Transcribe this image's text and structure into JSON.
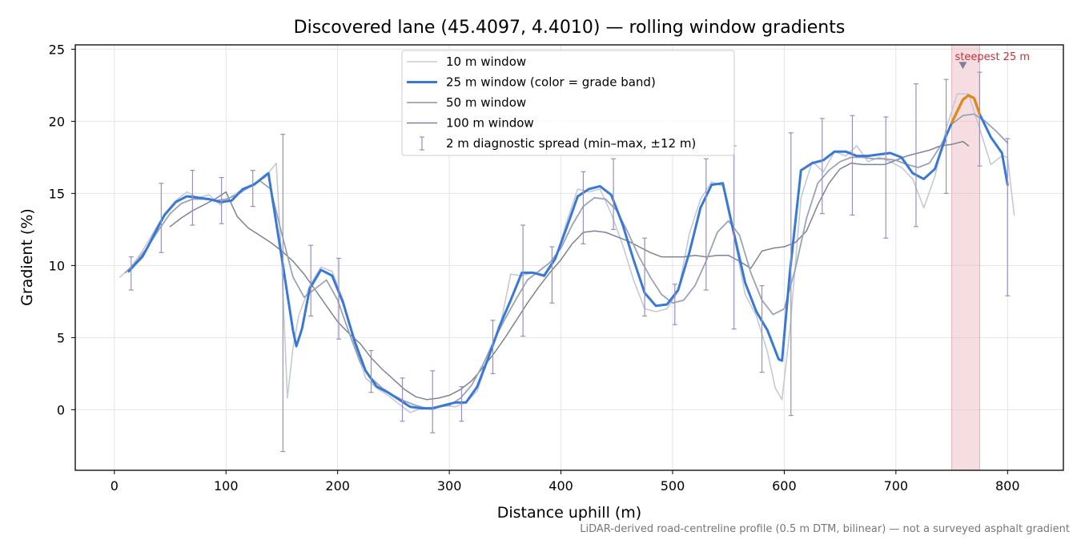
{
  "chart_data": {
    "type": "line",
    "title": "Discovered lane (45.4097, 4.4010) — rolling window gradients",
    "xlabel": "Distance uphill (m)",
    "ylabel": "Gradient (%)",
    "footnote": "LiDAR-derived road-centreline profile (0.5 m DTM, bilinear) — not a surveyed asphalt gradient",
    "xlim": [
      -35,
      850
    ],
    "ylim": [
      -4.2,
      25.3
    ],
    "x_ticks": [
      0,
      100,
      200,
      300,
      400,
      500,
      600,
      700,
      800
    ],
    "y_ticks": [
      0,
      5,
      10,
      15,
      20,
      25
    ],
    "grid": true,
    "legend_position": "top-center",
    "colors": {
      "w10": "#c3cad6",
      "w25": "#3a78d6",
      "w25_steep": "#e08a16",
      "w50": "#9aa4b4",
      "w100": "#7c8494",
      "errorbar": "#9a8fc0",
      "highlight_fill": "#eab4be",
      "highlight_label": "#c0303a",
      "grid": "#e4e4e4"
    },
    "annotation": {
      "text": "steepest 25 m",
      "x_range": [
        750,
        775
      ],
      "marker_x": 760,
      "marker_y": 23.9
    },
    "legend": [
      {
        "key": "w10",
        "label": "10 m window",
        "style": "line-thin"
      },
      {
        "key": "w25",
        "label": "25 m window (color = grade band)",
        "style": "line-thick"
      },
      {
        "key": "w50",
        "label": "50 m window",
        "style": "line-medium"
      },
      {
        "key": "w100",
        "label": "100 m window",
        "style": "line-dark"
      },
      {
        "key": "errorbar",
        "label": "2 m diagnostic spread (min–max, ±12 m)",
        "style": "errorbar"
      }
    ],
    "series": [
      {
        "key": "w10",
        "label": "10 m window",
        "x": [
          5,
          15,
          25,
          35,
          45,
          55,
          65,
          75,
          85,
          95,
          105,
          115,
          125,
          135,
          145,
          150,
          155,
          160,
          165,
          175,
          185,
          195,
          205,
          215,
          225,
          235,
          245,
          255,
          265,
          275,
          285,
          295,
          305,
          315,
          325,
          335,
          345,
          355,
          365,
          375,
          385,
          395,
          405,
          415,
          425,
          435,
          445,
          455,
          465,
          475,
          485,
          495,
          505,
          515,
          525,
          535,
          545,
          555,
          565,
          575,
          585,
          592,
          598,
          605,
          615,
          625,
          635,
          645,
          655,
          665,
          675,
          685,
          695,
          705,
          715,
          725,
          735,
          745,
          755,
          765,
          775,
          785,
          795,
          800,
          806
        ],
        "y": [
          9.2,
          9.9,
          11.0,
          12.3,
          13.6,
          14.5,
          15.1,
          14.7,
          14.9,
          14.2,
          14.8,
          15.3,
          15.7,
          16.1,
          17.1,
          10.0,
          0.8,
          4.3,
          6.5,
          8.6,
          9.9,
          9.6,
          7.6,
          4.6,
          2.2,
          1.5,
          1.0,
          0.4,
          -0.2,
          0.1,
          0.0,
          0.3,
          0.2,
          0.5,
          1.3,
          3.6,
          5.6,
          9.4,
          9.3,
          9.5,
          9.2,
          10.4,
          13.0,
          15.3,
          15.1,
          15.3,
          13.6,
          11.5,
          9.0,
          7.0,
          6.8,
          7.0,
          8.2,
          12.2,
          14.6,
          15.8,
          15.5,
          12.0,
          8.0,
          6.5,
          4.0,
          1.5,
          0.7,
          5.5,
          14.7,
          17.2,
          16.5,
          17.9,
          17.6,
          18.3,
          17.2,
          17.5,
          17.2,
          16.8,
          16.0,
          14.0,
          16.2,
          19.5,
          21.9,
          21.9,
          19.5,
          17.0,
          17.6,
          17.5,
          13.5
        ]
      },
      {
        "key": "w50",
        "label": "50 m window",
        "x": [
          10,
          20,
          30,
          40,
          50,
          60,
          70,
          80,
          90,
          100,
          110,
          120,
          130,
          140,
          150,
          160,
          170,
          180,
          190,
          200,
          210,
          220,
          230,
          240,
          250,
          260,
          270,
          280,
          290,
          300,
          310,
          320,
          330,
          340,
          350,
          360,
          370,
          380,
          390,
          400,
          410,
          420,
          430,
          440,
          450,
          460,
          470,
          480,
          490,
          500,
          510,
          520,
          530,
          540,
          550,
          560,
          570,
          580,
          590,
          600,
          610,
          620,
          630,
          640,
          650,
          660,
          670,
          680,
          690,
          700,
          710,
          720,
          730,
          740,
          750,
          760,
          770,
          780,
          790,
          800
        ],
        "y": [
          9.5,
          10.3,
          11.3,
          12.5,
          13.6,
          14.3,
          14.6,
          14.6,
          14.5,
          14.6,
          14.9,
          15.4,
          15.9,
          15.3,
          12.2,
          9.2,
          7.8,
          8.4,
          9.0,
          7.6,
          5.4,
          3.3,
          2.2,
          1.5,
          1.0,
          0.6,
          0.3,
          0.1,
          0.2,
          0.3,
          0.8,
          1.7,
          3.1,
          4.8,
          6.3,
          7.7,
          9.0,
          9.6,
          10.2,
          11.2,
          12.8,
          14.1,
          14.7,
          14.6,
          13.8,
          12.3,
          10.6,
          9.2,
          8.0,
          7.4,
          7.6,
          8.6,
          10.3,
          12.3,
          13.1,
          12.1,
          9.5,
          7.6,
          6.6,
          7.0,
          9.8,
          13.3,
          15.7,
          16.6,
          17.2,
          17.5,
          17.5,
          17.4,
          17.4,
          17.3,
          17.0,
          16.8,
          17.1,
          18.3,
          19.8,
          20.4,
          20.5,
          20.0,
          19.3,
          18.5
        ]
      },
      {
        "key": "w100",
        "label": "100 m window",
        "x": [
          50,
          60,
          70,
          80,
          90,
          100,
          110,
          120,
          130,
          140,
          150,
          160,
          170,
          180,
          190,
          200,
          210,
          220,
          230,
          240,
          250,
          260,
          270,
          280,
          290,
          300,
          310,
          320,
          330,
          340,
          350,
          360,
          370,
          380,
          390,
          400,
          410,
          420,
          430,
          440,
          450,
          460,
          470,
          480,
          490,
          500,
          510,
          520,
          530,
          540,
          550,
          560,
          570,
          580,
          590,
          600,
          610,
          620,
          630,
          640,
          650,
          660,
          670,
          680,
          690,
          700,
          710,
          720,
          730,
          740,
          750,
          760,
          765
        ],
        "y": [
          12.7,
          13.3,
          13.8,
          14.2,
          14.6,
          15.1,
          13.4,
          12.6,
          12.1,
          11.6,
          11.0,
          10.3,
          9.4,
          8.3,
          7.2,
          6.1,
          5.3,
          4.6,
          3.6,
          2.8,
          2.1,
          1.4,
          0.9,
          0.7,
          0.8,
          1.0,
          1.4,
          2.0,
          2.9,
          3.9,
          5.0,
          6.2,
          7.4,
          8.5,
          9.5,
          10.4,
          11.5,
          12.3,
          12.4,
          12.3,
          12.0,
          11.7,
          11.3,
          10.9,
          10.6,
          10.6,
          10.6,
          10.7,
          10.6,
          10.7,
          10.7,
          10.3,
          9.8,
          11.0,
          11.2,
          11.3,
          11.6,
          12.4,
          14.2,
          15.7,
          16.7,
          17.1,
          17.0,
          17.0,
          17.0,
          17.3,
          17.6,
          17.8,
          18.0,
          18.3,
          18.4,
          18.6,
          18.3
        ]
      },
      {
        "key": "w25",
        "label": "25 m window (color = grade band)",
        "x": [
          13,
          20,
          25,
          30,
          40,
          45,
          55,
          65,
          75,
          85,
          95,
          105,
          115,
          125,
          138,
          150,
          155,
          160,
          163,
          168,
          175,
          185,
          195,
          205,
          215,
          225,
          235,
          245,
          255,
          265,
          275,
          285,
          295,
          305,
          315,
          325,
          335,
          345,
          355,
          365,
          375,
          385,
          395,
          405,
          415,
          425,
          435,
          445,
          455,
          465,
          475,
          485,
          495,
          505,
          515,
          525,
          535,
          545,
          555,
          565,
          575,
          585,
          595,
          598,
          605,
          615,
          625,
          635,
          645,
          655,
          665,
          675,
          685,
          695,
          705,
          715,
          725,
          735,
          745,
          750,
          755,
          760,
          765,
          770,
          775,
          785,
          795,
          800
        ],
        "y": [
          9.6,
          10.2,
          10.6,
          11.3,
          12.8,
          13.5,
          14.4,
          14.8,
          14.7,
          14.6,
          14.4,
          14.5,
          15.3,
          15.6,
          16.4,
          10.5,
          8.0,
          5.5,
          4.4,
          5.6,
          8.4,
          9.7,
          9.3,
          7.4,
          4.8,
          2.7,
          1.6,
          1.2,
          0.7,
          0.2,
          0.1,
          0.1,
          0.3,
          0.5,
          0.5,
          1.6,
          3.6,
          5.8,
          7.6,
          9.5,
          9.5,
          9.3,
          10.5,
          12.6,
          14.8,
          15.3,
          15.5,
          14.9,
          12.9,
          10.4,
          8.1,
          7.2,
          7.3,
          8.3,
          10.9,
          14.0,
          15.6,
          15.7,
          12.2,
          8.8,
          6.8,
          5.5,
          3.5,
          3.4,
          9.5,
          16.6,
          17.1,
          17.3,
          17.9,
          17.9,
          17.6,
          17.6,
          17.7,
          17.8,
          17.5,
          16.4,
          16.0,
          16.7,
          19.0,
          19.9,
          20.7,
          21.5,
          21.8,
          21.6,
          20.5,
          18.9,
          17.8,
          15.6
        ],
        "steep_segment_x": [
          750,
          755,
          760,
          765,
          770,
          775
        ],
        "steep_segment_y": [
          19.9,
          20.7,
          21.5,
          21.8,
          21.6,
          20.5
        ]
      }
    ],
    "error_bars": {
      "x": [
        15,
        42,
        70,
        96,
        124,
        151,
        176,
        201,
        230,
        258,
        285,
        311,
        339,
        366,
        392,
        420,
        447,
        475,
        502,
        530,
        555,
        580,
        606,
        634,
        661,
        691,
        718,
        745,
        775,
        800
      ],
      "low": [
        8.3,
        10.9,
        12.8,
        12.9,
        14.1,
        -2.9,
        6.5,
        4.9,
        1.2,
        -0.8,
        -1.6,
        -0.8,
        2.5,
        5.1,
        7.4,
        11.5,
        12.5,
        6.5,
        5.9,
        8.3,
        5.6,
        2.6,
        -0.4,
        13.6,
        13.5,
        11.9,
        12.7,
        15.0,
        16.9,
        7.9
      ],
      "high": [
        10.6,
        15.7,
        16.6,
        16.1,
        16.6,
        19.1,
        11.4,
        10.5,
        4.1,
        2.2,
        2.7,
        1.6,
        6.2,
        12.8,
        11.3,
        16.5,
        17.4,
        11.9,
        8.7,
        17.4,
        18.3,
        8.6,
        19.2,
        20.2,
        20.4,
        20.3,
        22.6,
        22.9,
        23.4,
        18.8
      ]
    }
  }
}
